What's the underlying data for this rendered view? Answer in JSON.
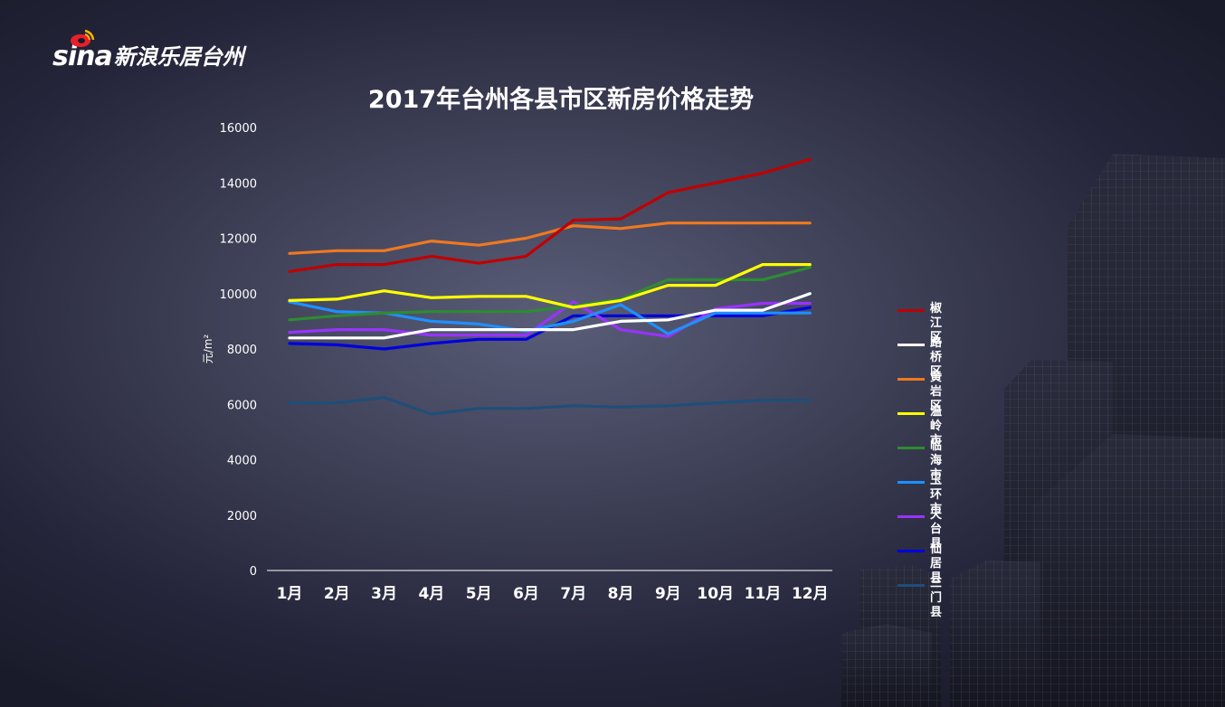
{
  "logo": {
    "sina_text": "sina",
    "brand_text": "新浪乐居台州"
  },
  "colors": {
    "background": "#3a3c52",
    "axis": "#ffffff",
    "text": "#ffffff"
  },
  "chart_data": {
    "type": "line",
    "title": "2017年台州各县市区新房价格走势",
    "xlabel": "",
    "ylabel": "元/m²",
    "ylim": [
      0,
      16000
    ],
    "yticks": [
      0,
      2000,
      4000,
      6000,
      8000,
      10000,
      12000,
      14000,
      16000
    ],
    "grid": false,
    "legend_position": "right",
    "categories": [
      "1月",
      "2月",
      "3月",
      "4月",
      "5月",
      "6月",
      "7月",
      "8月",
      "9月",
      "10月",
      "11月",
      "12月"
    ],
    "series": [
      {
        "name": "椒江区",
        "color": "#c00000",
        "values": [
          10800,
          11050,
          11050,
          11350,
          11100,
          11350,
          12650,
          12700,
          13650,
          14000,
          14350,
          14850
        ]
      },
      {
        "name": "路桥区",
        "color": "#ffffff",
        "values": [
          8400,
          8400,
          8400,
          8700,
          8700,
          8700,
          8700,
          9000,
          9050,
          9400,
          9400,
          10000
        ]
      },
      {
        "name": "黄岩区",
        "color": "#f07820",
        "values": [
          11450,
          11550,
          11550,
          11900,
          11750,
          12000,
          12450,
          12350,
          12550,
          12550,
          12550,
          12550
        ]
      },
      {
        "name": "温岭市",
        "color": "#ffff00",
        "values": [
          9750,
          9800,
          10100,
          9850,
          9900,
          9900,
          9500,
          9750,
          10300,
          10300,
          11050,
          11050
        ]
      },
      {
        "name": "临海市",
        "color": "#2e8b32",
        "values": [
          9050,
          9200,
          9300,
          9350,
          9350,
          9350,
          9550,
          9800,
          10500,
          10500,
          10500,
          10950
        ]
      },
      {
        "name": "玉环市",
        "color": "#1e90ff",
        "values": [
          9700,
          9350,
          9300,
          9000,
          8900,
          8650,
          9000,
          9600,
          8550,
          9300,
          9300,
          9300
        ]
      },
      {
        "name": "天台县",
        "color": "#9933ff",
        "values": [
          8600,
          8700,
          8700,
          8500,
          8500,
          8500,
          9700,
          8700,
          8450,
          9450,
          9650,
          9650
        ]
      },
      {
        "name": "仙居县",
        "color": "#0000e0",
        "values": [
          8200,
          8150,
          8000,
          8200,
          8350,
          8350,
          9200,
          9200,
          9200,
          9200,
          9200,
          9500
        ]
      },
      {
        "name": "三门县",
        "color": "#1f4e79",
        "values": [
          6050,
          6050,
          6250,
          5650,
          5850,
          5850,
          5950,
          5900,
          5950,
          6050,
          6150,
          6150
        ]
      }
    ]
  }
}
